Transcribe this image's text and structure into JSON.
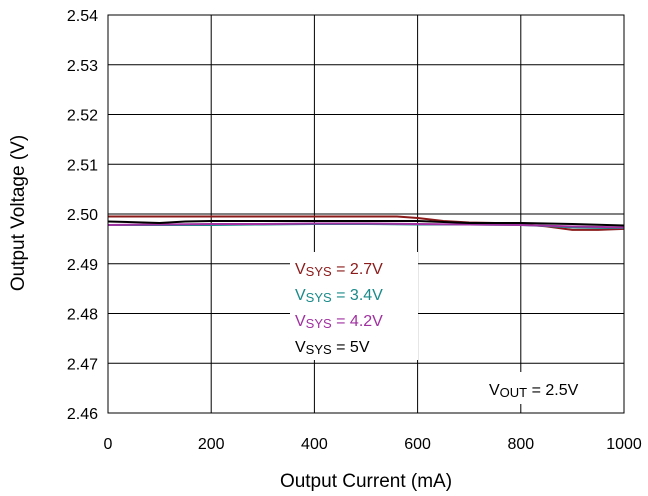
{
  "chart_data": {
    "type": "line",
    "xlabel": "Output Current (mA)",
    "ylabel": "Output Voltage (V)",
    "xlim": [
      0,
      1000
    ],
    "ylim": [
      2.46,
      2.54
    ],
    "xticks": [
      0,
      200,
      400,
      600,
      800,
      1000
    ],
    "yticks": [
      2.46,
      2.47,
      2.48,
      2.49,
      2.5,
      2.51,
      2.52,
      2.53,
      2.54
    ],
    "xtick_labels": [
      "0",
      "200",
      "400",
      "600",
      "800",
      "1000"
    ],
    "ytick_labels": [
      "2.46",
      "2.47",
      "2.48",
      "2.49",
      "2.50",
      "2.51",
      "2.52",
      "2.53",
      "2.54"
    ],
    "grid": true,
    "legend_position": "center",
    "series": [
      {
        "name_main": "V",
        "name_sub": "SYS",
        "name_rest": " = 2.7V",
        "color": "#8B1A1A",
        "x": [
          0,
          50,
          100,
          150,
          200,
          300,
          400,
          500,
          560,
          600,
          650,
          700,
          750,
          800,
          850,
          900,
          950,
          1000
        ],
        "y": [
          2.4995,
          2.4995,
          2.4995,
          2.4995,
          2.4995,
          2.4995,
          2.4995,
          2.4995,
          2.4995,
          2.4992,
          2.4986,
          2.4983,
          2.4982,
          2.498,
          2.4975,
          2.4968,
          2.4968,
          2.497
        ]
      },
      {
        "name_main": "V",
        "name_sub": "SYS",
        "name_rest": " = 3.4V",
        "color": "#1A8A8A",
        "x": [
          0,
          100,
          200,
          300,
          400,
          500,
          600,
          700,
          800,
          850,
          900,
          950,
          1000
        ],
        "y": [
          2.4978,
          2.4978,
          2.4978,
          2.4979,
          2.498,
          2.498,
          2.4979,
          2.4979,
          2.4978,
          2.4976,
          2.4973,
          2.4972,
          2.4972
        ]
      },
      {
        "name_main": "V",
        "name_sub": "SYS",
        "name_rest": " = 4.2V",
        "color": "#A030A0",
        "x": [
          0,
          100,
          200,
          300,
          400,
          500,
          600,
          700,
          800,
          900,
          1000
        ],
        "y": [
          2.4978,
          2.4979,
          2.498,
          2.498,
          2.4981,
          2.4981,
          2.498,
          2.4979,
          2.4978,
          2.4975,
          2.4973
        ]
      },
      {
        "name_main": "V",
        "name_sub": "SYS",
        "name_rest": " = 5V",
        "color": "#000000",
        "x": [
          0,
          100,
          150,
          200,
          300,
          400,
          500,
          600,
          650,
          700,
          800,
          900,
          1000
        ],
        "y": [
          2.4985,
          2.4982,
          2.4985,
          2.4986,
          2.4986,
          2.4986,
          2.4986,
          2.4986,
          2.4984,
          2.4982,
          2.4982,
          2.498,
          2.4977
        ]
      }
    ],
    "annotation": {
      "main": "V",
      "sub": "OUT",
      "rest": " = 2.5V"
    }
  }
}
